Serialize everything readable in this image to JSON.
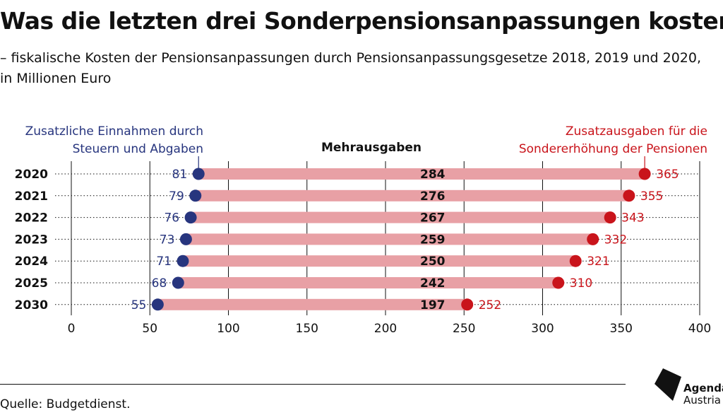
{
  "header": {
    "title": "Was die letzten drei Sonderpensionsanpassungen kosten",
    "subtitle": "– fiskalische Kosten der Pensionsanpassungen durch Pensionsanpassungsgesetze 2018, 2019 und 2020, in Millionen Euro"
  },
  "legend": {
    "left_line1": "Zusatzliche Einnahmen durch",
    "left_line2": "Steuern und Abgaben",
    "middle": "Mehrausgaben",
    "right_line1": "Zusatzausgaben für die",
    "right_line2": "Sondererhöhung der Pensionen"
  },
  "footer": {
    "source": "Quelle: Budgetdienst.",
    "logo_line1": "Agenda",
    "logo_line2": "Austria"
  },
  "colors": {
    "blue": "#27357e",
    "red": "#c9141b",
    "bar": "#e8a0a5"
  },
  "chart_data": {
    "type": "dumbbell",
    "categories": [
      "2020",
      "2021",
      "2022",
      "2023",
      "2024",
      "2025",
      "2030"
    ],
    "series": [
      {
        "name": "Zusatzliche Einnahmen durch Steuern und Abgaben",
        "values": [
          81,
          79,
          76,
          73,
          71,
          68,
          55
        ]
      },
      {
        "name": "Mehrausgaben",
        "values": [
          284,
          276,
          267,
          259,
          250,
          242,
          197
        ]
      },
      {
        "name": "Zusatzausgaben für die Sondererhöhung der Pensionen",
        "values": [
          365,
          355,
          343,
          332,
          321,
          310,
          252
        ]
      }
    ],
    "xlim": [
      0,
      400
    ],
    "xticks": [
      0,
      50,
      100,
      150,
      200,
      250,
      300,
      350,
      400
    ],
    "grid": true
  }
}
